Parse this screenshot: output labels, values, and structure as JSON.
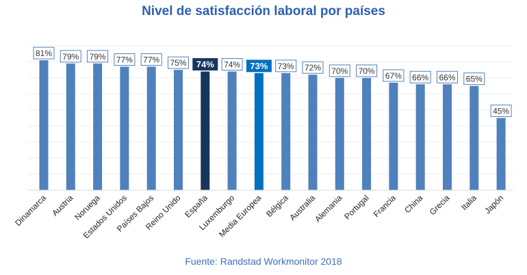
{
  "title": "Nivel de satisfacción laboral por países",
  "source": "Fuente: Randstad Workmonitor 2018",
  "colors": {
    "bar": "#4f81bd",
    "spain": "#17365d",
    "europe_avg": "#0070c0",
    "title": "#2f5fae",
    "label_border": "#4f81bd"
  },
  "chart_data": {
    "type": "bar",
    "categories": [
      "Dinamarca",
      "Austria",
      "Noruega",
      "Estados Unidos",
      "Países Bajos",
      "Reino Unido",
      "España",
      "Luxemburgo",
      "Media Europea",
      "Bélgica",
      "Australia",
      "Alemania",
      "Portugal",
      "Francia",
      "China",
      "Grecia",
      "Italia",
      "Japón"
    ],
    "values": [
      81,
      79,
      79,
      77,
      77,
      75,
      74,
      74,
      73,
      73,
      72,
      70,
      70,
      67,
      66,
      66,
      65,
      45
    ],
    "value_labels": [
      "81%",
      "79%",
      "79%",
      "77%",
      "77%",
      "75%",
      "74%",
      "74%",
      "73%",
      "73%",
      "72%",
      "70%",
      "70%",
      "67%",
      "66%",
      "66%",
      "65%",
      "45%"
    ],
    "highlight": {
      "España": "spain",
      "Media Europea": "europe_avg"
    },
    "ylim": [
      0,
      90
    ],
    "grid": true,
    "legend": "none"
  }
}
